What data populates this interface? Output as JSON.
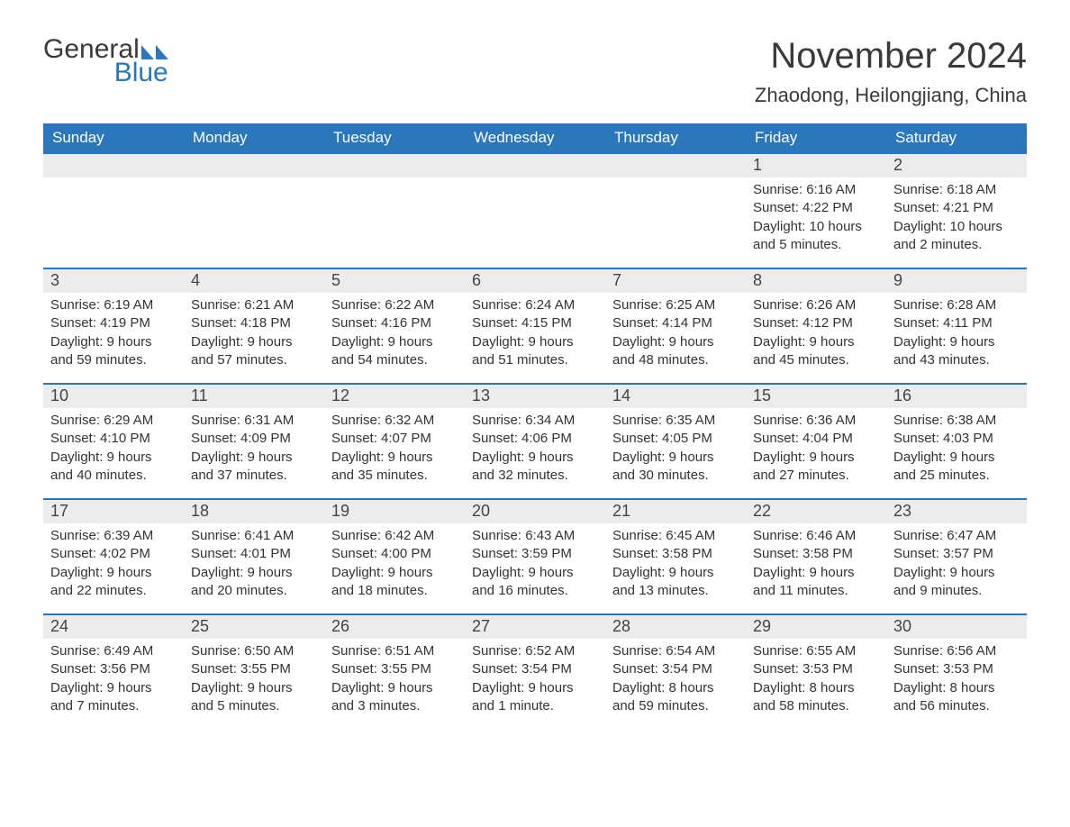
{
  "logo": {
    "text1": "General",
    "text2": "Blue",
    "icon_color": "#2a77bb"
  },
  "title": "November 2024",
  "location": "Zhaodong, Heilongjiang, China",
  "colors": {
    "header_bg": "#2a77bb",
    "header_text": "#ffffff",
    "daynum_bg": "#ececec",
    "rule": "#2a77bb",
    "body_text": "#333333",
    "title_text": "#3a3a3a"
  },
  "day_names": [
    "Sunday",
    "Monday",
    "Tuesday",
    "Wednesday",
    "Thursday",
    "Friday",
    "Saturday"
  ],
  "weeks": [
    [
      null,
      null,
      null,
      null,
      null,
      {
        "n": "1",
        "sunrise": "Sunrise: 6:16 AM",
        "sunset": "Sunset: 4:22 PM",
        "daylight": "Daylight: 10 hours and 5 minutes."
      },
      {
        "n": "2",
        "sunrise": "Sunrise: 6:18 AM",
        "sunset": "Sunset: 4:21 PM",
        "daylight": "Daylight: 10 hours and 2 minutes."
      }
    ],
    [
      {
        "n": "3",
        "sunrise": "Sunrise: 6:19 AM",
        "sunset": "Sunset: 4:19 PM",
        "daylight": "Daylight: 9 hours and 59 minutes."
      },
      {
        "n": "4",
        "sunrise": "Sunrise: 6:21 AM",
        "sunset": "Sunset: 4:18 PM",
        "daylight": "Daylight: 9 hours and 57 minutes."
      },
      {
        "n": "5",
        "sunrise": "Sunrise: 6:22 AM",
        "sunset": "Sunset: 4:16 PM",
        "daylight": "Daylight: 9 hours and 54 minutes."
      },
      {
        "n": "6",
        "sunrise": "Sunrise: 6:24 AM",
        "sunset": "Sunset: 4:15 PM",
        "daylight": "Daylight: 9 hours and 51 minutes."
      },
      {
        "n": "7",
        "sunrise": "Sunrise: 6:25 AM",
        "sunset": "Sunset: 4:14 PM",
        "daylight": "Daylight: 9 hours and 48 minutes."
      },
      {
        "n": "8",
        "sunrise": "Sunrise: 6:26 AM",
        "sunset": "Sunset: 4:12 PM",
        "daylight": "Daylight: 9 hours and 45 minutes."
      },
      {
        "n": "9",
        "sunrise": "Sunrise: 6:28 AM",
        "sunset": "Sunset: 4:11 PM",
        "daylight": "Daylight: 9 hours and 43 minutes."
      }
    ],
    [
      {
        "n": "10",
        "sunrise": "Sunrise: 6:29 AM",
        "sunset": "Sunset: 4:10 PM",
        "daylight": "Daylight: 9 hours and 40 minutes."
      },
      {
        "n": "11",
        "sunrise": "Sunrise: 6:31 AM",
        "sunset": "Sunset: 4:09 PM",
        "daylight": "Daylight: 9 hours and 37 minutes."
      },
      {
        "n": "12",
        "sunrise": "Sunrise: 6:32 AM",
        "sunset": "Sunset: 4:07 PM",
        "daylight": "Daylight: 9 hours and 35 minutes."
      },
      {
        "n": "13",
        "sunrise": "Sunrise: 6:34 AM",
        "sunset": "Sunset: 4:06 PM",
        "daylight": "Daylight: 9 hours and 32 minutes."
      },
      {
        "n": "14",
        "sunrise": "Sunrise: 6:35 AM",
        "sunset": "Sunset: 4:05 PM",
        "daylight": "Daylight: 9 hours and 30 minutes."
      },
      {
        "n": "15",
        "sunrise": "Sunrise: 6:36 AM",
        "sunset": "Sunset: 4:04 PM",
        "daylight": "Daylight: 9 hours and 27 minutes."
      },
      {
        "n": "16",
        "sunrise": "Sunrise: 6:38 AM",
        "sunset": "Sunset: 4:03 PM",
        "daylight": "Daylight: 9 hours and 25 minutes."
      }
    ],
    [
      {
        "n": "17",
        "sunrise": "Sunrise: 6:39 AM",
        "sunset": "Sunset: 4:02 PM",
        "daylight": "Daylight: 9 hours and 22 minutes."
      },
      {
        "n": "18",
        "sunrise": "Sunrise: 6:41 AM",
        "sunset": "Sunset: 4:01 PM",
        "daylight": "Daylight: 9 hours and 20 minutes."
      },
      {
        "n": "19",
        "sunrise": "Sunrise: 6:42 AM",
        "sunset": "Sunset: 4:00 PM",
        "daylight": "Daylight: 9 hours and 18 minutes."
      },
      {
        "n": "20",
        "sunrise": "Sunrise: 6:43 AM",
        "sunset": "Sunset: 3:59 PM",
        "daylight": "Daylight: 9 hours and 16 minutes."
      },
      {
        "n": "21",
        "sunrise": "Sunrise: 6:45 AM",
        "sunset": "Sunset: 3:58 PM",
        "daylight": "Daylight: 9 hours and 13 minutes."
      },
      {
        "n": "22",
        "sunrise": "Sunrise: 6:46 AM",
        "sunset": "Sunset: 3:58 PM",
        "daylight": "Daylight: 9 hours and 11 minutes."
      },
      {
        "n": "23",
        "sunrise": "Sunrise: 6:47 AM",
        "sunset": "Sunset: 3:57 PM",
        "daylight": "Daylight: 9 hours and 9 minutes."
      }
    ],
    [
      {
        "n": "24",
        "sunrise": "Sunrise: 6:49 AM",
        "sunset": "Sunset: 3:56 PM",
        "daylight": "Daylight: 9 hours and 7 minutes."
      },
      {
        "n": "25",
        "sunrise": "Sunrise: 6:50 AM",
        "sunset": "Sunset: 3:55 PM",
        "daylight": "Daylight: 9 hours and 5 minutes."
      },
      {
        "n": "26",
        "sunrise": "Sunrise: 6:51 AM",
        "sunset": "Sunset: 3:55 PM",
        "daylight": "Daylight: 9 hours and 3 minutes."
      },
      {
        "n": "27",
        "sunrise": "Sunrise: 6:52 AM",
        "sunset": "Sunset: 3:54 PM",
        "daylight": "Daylight: 9 hours and 1 minute."
      },
      {
        "n": "28",
        "sunrise": "Sunrise: 6:54 AM",
        "sunset": "Sunset: 3:54 PM",
        "daylight": "Daylight: 8 hours and 59 minutes."
      },
      {
        "n": "29",
        "sunrise": "Sunrise: 6:55 AM",
        "sunset": "Sunset: 3:53 PM",
        "daylight": "Daylight: 8 hours and 58 minutes."
      },
      {
        "n": "30",
        "sunrise": "Sunrise: 6:56 AM",
        "sunset": "Sunset: 3:53 PM",
        "daylight": "Daylight: 8 hours and 56 minutes."
      }
    ]
  ]
}
